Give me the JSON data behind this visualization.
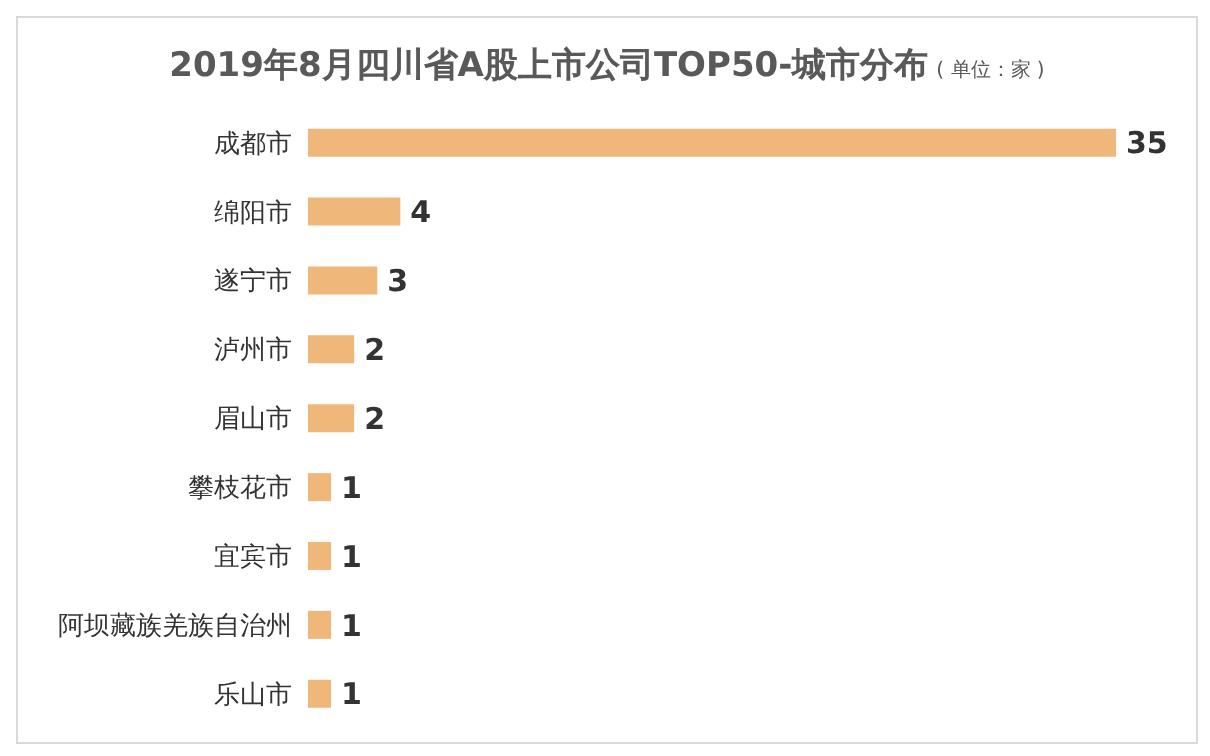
{
  "chart_data": {
    "type": "bar",
    "orientation": "horizontal",
    "title": "2019年8月四川省A股上市公司TOP50-城市分布",
    "subtitle": "( 单位：家 )",
    "categories": [
      "成都市",
      "绵阳市",
      "遂宁市",
      "泸州市",
      "眉山市",
      "攀枝花市",
      "宜宾市",
      "阿坝藏族羌族自治州",
      "乐山市"
    ],
    "values": [
      35,
      4,
      3,
      2,
      2,
      1,
      1,
      1,
      1
    ],
    "color": "#f0b77a",
    "data_labels": true
  }
}
